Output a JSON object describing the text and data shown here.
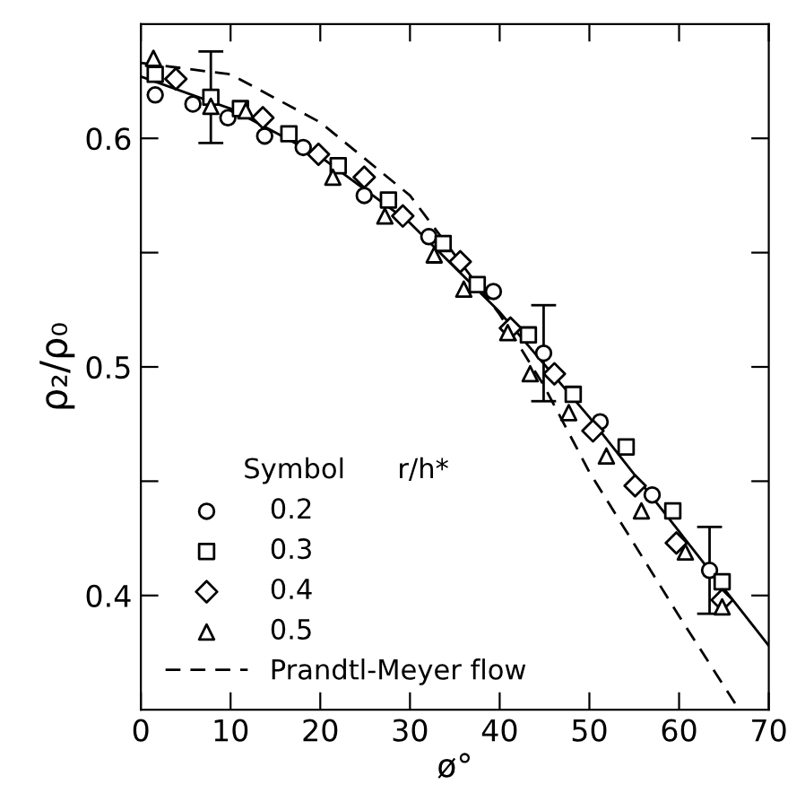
{
  "chart_data": {
    "type": "scatter",
    "xlabel": "ø°",
    "ylabel": "ρ₂/ρ₀",
    "legend_title": "Symbol      r/h*",
    "xlim": [
      0,
      70
    ],
    "ylim": [
      0.35,
      0.65
    ],
    "xticks": [
      0,
      10,
      20,
      30,
      40,
      50,
      60,
      70
    ],
    "yticks": [
      {
        "value": 0.4,
        "label": "0.4"
      },
      {
        "value": 0.45,
        "label": null
      },
      {
        "value": 0.5,
        "label": "0.5"
      },
      {
        "value": 0.55,
        "label": null
      },
      {
        "value": 0.6,
        "label": "0.6"
      }
    ],
    "grid": false,
    "legend": "bottom left",
    "series": [
      {
        "name": "0.2",
        "marker": "circle",
        "color": "#000000",
        "x": [
          1.6,
          5.8,
          9.7,
          13.8,
          18.1,
          24.9,
          32.1,
          39.3,
          44.9,
          51.2,
          57.0,
          63.4
        ],
        "values": [
          0.619,
          0.615,
          0.609,
          0.601,
          0.596,
          0.575,
          0.557,
          0.533,
          0.506,
          0.476,
          0.444,
          0.411
        ],
        "errors": [
          null,
          null,
          null,
          null,
          null,
          null,
          null,
          null,
          0.021,
          null,
          null,
          0.019
        ]
      },
      {
        "name": "0.3",
        "marker": "square",
        "color": "#000000",
        "x": [
          1.6,
          7.8,
          11.1,
          16.5,
          22.0,
          27.6,
          33.7,
          37.5,
          43.2,
          48.2,
          54.1,
          59.3,
          64.8
        ],
        "values": [
          0.628,
          0.618,
          0.613,
          0.602,
          0.588,
          0.573,
          0.554,
          0.536,
          0.514,
          0.488,
          0.465,
          0.437,
          0.406
        ],
        "errors": [
          null,
          0.02,
          null,
          null,
          null,
          null,
          null,
          null,
          null,
          null,
          null,
          null,
          null
        ]
      },
      {
        "name": "0.4",
        "marker": "diamond",
        "color": "#000000",
        "x": [
          3.9,
          13.6,
          19.8,
          24.9,
          29.2,
          35.6,
          41.2,
          46.1,
          50.4,
          55.1,
          59.7,
          64.8
        ],
        "values": [
          0.626,
          0.609,
          0.593,
          0.583,
          0.566,
          0.546,
          0.517,
          0.497,
          0.472,
          0.448,
          0.423,
          0.398
        ]
      },
      {
        "name": "0.5",
        "marker": "triangle",
        "color": "#000000",
        "x": [
          1.4,
          7.8,
          11.7,
          21.4,
          27.2,
          32.7,
          36.0,
          40.9,
          43.4,
          47.7,
          51.9,
          55.8,
          60.7,
          64.8
        ],
        "values": [
          0.635,
          0.614,
          0.612,
          0.583,
          0.566,
          0.549,
          0.534,
          0.515,
          0.497,
          0.48,
          0.461,
          0.437,
          0.419,
          0.395
        ]
      },
      {
        "type": "line",
        "line_style": "solid",
        "color": "#000000",
        "x": [
          0,
          10,
          20,
          30,
          40,
          50,
          60,
          70
        ],
        "values": [
          0.627,
          0.613,
          0.592,
          0.563,
          0.524,
          0.478,
          0.428,
          0.378
        ]
      },
      {
        "name": "Prandtl-Meyer flow",
        "type": "line",
        "line_style": "dashed",
        "color": "#000000",
        "x": [
          0,
          10,
          20,
          30,
          40,
          44.9,
          50,
          60,
          66.7
        ],
        "values": [
          0.633,
          0.628,
          0.607,
          0.575,
          0.523,
          0.492,
          0.454,
          0.391,
          0.35
        ]
      }
    ]
  }
}
